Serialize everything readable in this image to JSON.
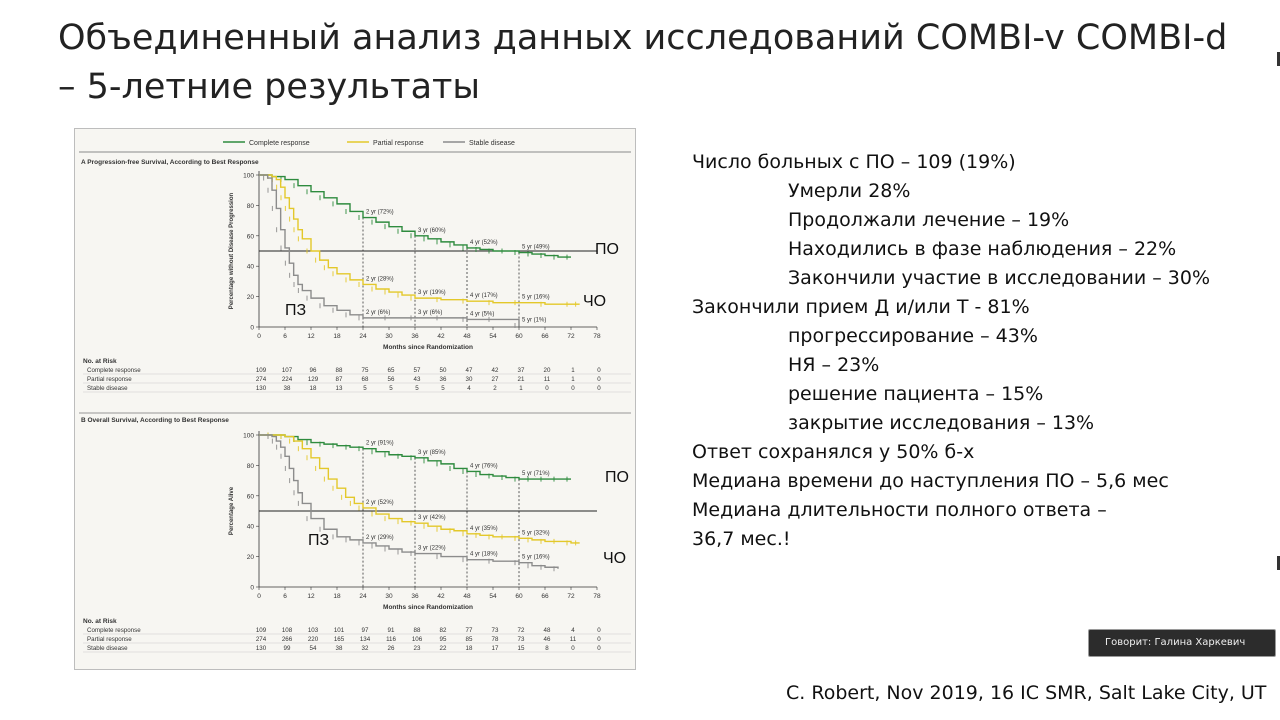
{
  "slide": {
    "title_line1": "Объединенный анализ данных исследований COMBI-v COMBI-d",
    "title_line2": "– 5-летние результаты",
    "citation": "C. Robert, Nov 2019, 16 IC SMR, Salt Lake City, UT",
    "speaker_label": "Говорит: Галина Харкевич"
  },
  "notes": [
    {
      "text": "Число больных с ПО – 109 (19%)",
      "indent": false
    },
    {
      "text": "Умерли 28%",
      "indent": true
    },
    {
      "text": "Продолжали лечение – 19%",
      "indent": true
    },
    {
      "text": "Находились в фазе наблюдения – 22%",
      "indent": true
    },
    {
      "text": "Закончили участие в исследовании – 30%",
      "indent": true
    },
    {
      "text": "Закончили прием Д и/или Т - 81%",
      "indent": false
    },
    {
      "text": "прогрессирование – 43%",
      "indent": true
    },
    {
      "text": "НЯ – 23%",
      "indent": true
    },
    {
      "text": "решение пациента – 15%",
      "indent": true
    },
    {
      "text": "закрытие исследования – 13%",
      "indent": true
    },
    {
      "text": "Ответ сохранялся у 50% б-х",
      "indent": false
    },
    {
      "text": "Медиана времени до наступления ПО – 5,6 мес",
      "indent": false
    },
    {
      "text": "Медиана длительности полного ответа –",
      "indent": false
    },
    {
      "text": "36,7 мес.!",
      "indent": false
    }
  ],
  "legend": [
    {
      "name": "Complete response",
      "color": "#2e8b3e"
    },
    {
      "name": "Partial response",
      "color": "#e3c82a"
    },
    {
      "name": "Stable disease",
      "color": "#8c8c8c"
    }
  ],
  "chart_data": [
    {
      "type": "line",
      "panel_label": "A",
      "title": "Progression-free Survival, According to Best Response",
      "xlabel": "Months since Randomization",
      "ylabel": "Percentage without Disease Progression",
      "xticks": [
        0,
        6,
        12,
        18,
        24,
        30,
        36,
        42,
        48,
        54,
        60,
        66,
        72,
        78
      ],
      "yticks": [
        0,
        20,
        40,
        60,
        80,
        100
      ],
      "xlim": [
        0,
        78
      ],
      "ylim": [
        0,
        100
      ],
      "median_line": 50,
      "landmarks": [
        24,
        36,
        48,
        60
      ],
      "series": [
        {
          "name": "Complete response",
          "color": "#2e8b3e",
          "x": [
            0,
            3,
            6,
            9,
            12,
            15,
            18,
            21,
            24,
            27,
            30,
            33,
            36,
            39,
            42,
            45,
            48,
            51,
            54,
            57,
            60,
            63,
            66,
            69,
            72
          ],
          "y": [
            100,
            99,
            97,
            93,
            89,
            85,
            81,
            76,
            72,
            69,
            66,
            63,
            60,
            58,
            56,
            54,
            52,
            51,
            50,
            50,
            49,
            48,
            47,
            46,
            46
          ]
        },
        {
          "name": "Partial response",
          "color": "#e3c82a",
          "x": [
            0,
            3,
            4,
            5,
            6,
            7,
            8,
            9,
            10,
            12,
            14,
            16,
            18,
            21,
            24,
            27,
            30,
            33,
            36,
            42,
            48,
            54,
            60,
            66,
            72,
            74
          ],
          "y": [
            100,
            99,
            97,
            92,
            85,
            78,
            71,
            64,
            58,
            50,
            44,
            39,
            35,
            31,
            28,
            25,
            23,
            21,
            19,
            18,
            17,
            16,
            16,
            15,
            15,
            15
          ]
        },
        {
          "name": "Stable disease",
          "color": "#8c8c8c",
          "x": [
            0,
            2,
            3,
            4,
            5,
            6,
            7,
            8,
            9,
            10,
            12,
            15,
            18,
            21,
            24,
            30,
            36,
            42,
            48,
            54,
            60
          ],
          "y": [
            100,
            98,
            90,
            78,
            64,
            52,
            42,
            34,
            28,
            24,
            19,
            14,
            11,
            8,
            6,
            6,
            6,
            6,
            5,
            5,
            1
          ]
        }
      ],
      "annotations": [
        {
          "x": 24,
          "series": "Complete response",
          "text": "2 yr (72%)"
        },
        {
          "x": 36,
          "series": "Complete response",
          "text": "3 yr (60%)"
        },
        {
          "x": 48,
          "series": "Complete response",
          "text": "4 yr (52%)"
        },
        {
          "x": 60,
          "series": "Complete response",
          "text": "5 yr (49%)"
        },
        {
          "x": 24,
          "series": "Partial response",
          "text": "2 yr (28%)"
        },
        {
          "x": 36,
          "series": "Partial response",
          "text": "3 yr (19%)"
        },
        {
          "x": 48,
          "series": "Partial response",
          "text": "4 yr (17%)"
        },
        {
          "x": 60,
          "series": "Partial response",
          "text": "5 yr (16%)"
        },
        {
          "x": 24,
          "series": "Stable disease",
          "text": "2 yr (6%)"
        },
        {
          "x": 36,
          "series": "Stable disease",
          "text": "3 yr (6%)"
        },
        {
          "x": 48,
          "series": "Stable disease",
          "text": "4 yr (5%)"
        },
        {
          "x": 60,
          "series": "Stable disease",
          "text": "5 yr (1%)"
        }
      ],
      "overlay_labels": {
        "complete": "ПО",
        "partial": "ЧО",
        "stable": "ПЗ"
      },
      "risk_table": {
        "header": "No. at Risk",
        "rows": [
          {
            "label": "Complete response",
            "values": [
              "109",
              "107",
              "96",
              "88",
              "75",
              "65",
              "57",
              "50",
              "47",
              "42",
              "37",
              "20",
              "1",
              "0"
            ]
          },
          {
            "label": "Partial response",
            "values": [
              "274",
              "224",
              "129",
              "87",
              "68",
              "56",
              "43",
              "36",
              "30",
              "27",
              "21",
              "11",
              "1",
              "0"
            ]
          },
          {
            "label": "Stable disease",
            "values": [
              "130",
              "38",
              "18",
              "13",
              "5",
              "5",
              "5",
              "5",
              "4",
              "2",
              "1",
              "0",
              "0",
              "0"
            ]
          }
        ]
      }
    },
    {
      "type": "line",
      "panel_label": "B",
      "title": "Overall Survival, According to Best Response",
      "xlabel": "Months since Randomization",
      "ylabel": "Percentage Alive",
      "xticks": [
        0,
        6,
        12,
        18,
        24,
        30,
        36,
        42,
        48,
        54,
        60,
        66,
        72,
        78
      ],
      "yticks": [
        0,
        20,
        40,
        60,
        80,
        100
      ],
      "xlim": [
        0,
        78
      ],
      "ylim": [
        0,
        100
      ],
      "median_line": 50,
      "landmarks": [
        24,
        36,
        48,
        60
      ],
      "series": [
        {
          "name": "Complete response",
          "color": "#2e8b3e",
          "x": [
            0,
            3,
            6,
            9,
            12,
            15,
            18,
            21,
            24,
            27,
            30,
            33,
            36,
            39,
            42,
            45,
            48,
            51,
            54,
            57,
            60,
            63,
            66,
            69,
            72
          ],
          "y": [
            100,
            100,
            99,
            97,
            95,
            94,
            93,
            92,
            91,
            89,
            87,
            86,
            85,
            83,
            81,
            78,
            76,
            74,
            73,
            72,
            71,
            71,
            71,
            71,
            71
          ]
        },
        {
          "name": "Partial response",
          "color": "#e3c82a",
          "x": [
            0,
            3,
            6,
            8,
            10,
            12,
            14,
            16,
            18,
            20,
            22,
            24,
            27,
            30,
            33,
            36,
            39,
            42,
            45,
            48,
            51,
            54,
            57,
            60,
            63,
            66,
            69,
            72,
            74
          ],
          "y": [
            100,
            100,
            99,
            96,
            91,
            85,
            78,
            71,
            65,
            59,
            55,
            52,
            48,
            45,
            43,
            42,
            40,
            38,
            37,
            35,
            34,
            33,
            33,
            32,
            31,
            30,
            30,
            29,
            29
          ]
        },
        {
          "name": "Stable disease",
          "color": "#8c8c8c",
          "x": [
            0,
            3,
            4,
            5,
            6,
            7,
            8,
            9,
            10,
            12,
            15,
            18,
            21,
            24,
            27,
            30,
            33,
            36,
            42,
            48,
            54,
            60,
            63,
            66,
            69
          ],
          "y": [
            100,
            99,
            96,
            92,
            86,
            78,
            70,
            62,
            55,
            45,
            38,
            33,
            31,
            29,
            27,
            25,
            23,
            22,
            20,
            18,
            17,
            16,
            14,
            13,
            12
          ]
        }
      ],
      "annotations": [
        {
          "x": 24,
          "series": "Complete response",
          "text": "2 yr (91%)"
        },
        {
          "x": 36,
          "series": "Complete response",
          "text": "3 yr (85%)"
        },
        {
          "x": 48,
          "series": "Complete response",
          "text": "4 yr (76%)"
        },
        {
          "x": 60,
          "series": "Complete response",
          "text": "5 yr (71%)"
        },
        {
          "x": 24,
          "series": "Partial response",
          "text": "2 yr (52%)"
        },
        {
          "x": 36,
          "series": "Partial response",
          "text": "3 yr (42%)"
        },
        {
          "x": 48,
          "series": "Partial response",
          "text": "4 yr (35%)"
        },
        {
          "x": 60,
          "series": "Partial response",
          "text": "5 yr (32%)"
        },
        {
          "x": 24,
          "series": "Stable disease",
          "text": "2 yr (29%)"
        },
        {
          "x": 36,
          "series": "Stable disease",
          "text": "3 yr (22%)"
        },
        {
          "x": 48,
          "series": "Stable disease",
          "text": "4 yr (18%)"
        },
        {
          "x": 60,
          "series": "Stable disease",
          "text": "5 yr (16%)"
        }
      ],
      "overlay_labels": {
        "complete": "ПО",
        "partial": "ЧО",
        "stable": "ПЗ"
      },
      "risk_table": {
        "header": "No. at Risk",
        "rows": [
          {
            "label": "Complete response",
            "values": [
              "109",
              "108",
              "103",
              "101",
              "97",
              "91",
              "88",
              "82",
              "77",
              "73",
              "72",
              "48",
              "4",
              "0"
            ]
          },
          {
            "label": "Partial response",
            "values": [
              "274",
              "266",
              "220",
              "165",
              "134",
              "116",
              "106",
              "95",
              "85",
              "78",
              "73",
              "46",
              "11",
              "0"
            ]
          },
          {
            "label": "Stable disease",
            "values": [
              "130",
              "99",
              "54",
              "38",
              "32",
              "26",
              "23",
              "22",
              "18",
              "17",
              "15",
              "8",
              "0",
              "0"
            ]
          }
        ]
      }
    }
  ]
}
